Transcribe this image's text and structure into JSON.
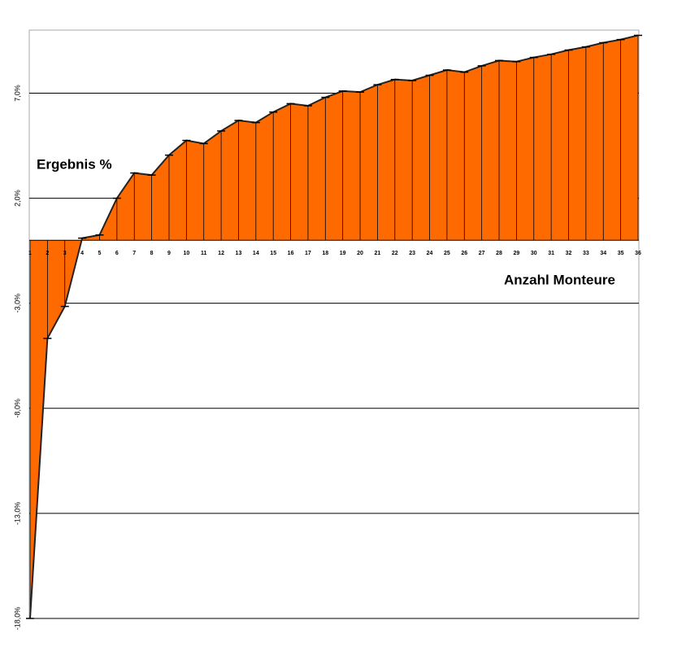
{
  "chart_data": {
    "type": "area",
    "y_label": "Ergebnis %",
    "x_label": "Anzahl Monteure",
    "categories": [
      "1",
      "2",
      "3",
      "4",
      "5",
      "6",
      "7",
      "8",
      "9",
      "10",
      "11",
      "12",
      "13",
      "14",
      "15",
      "16",
      "17",
      "18",
      "19",
      "20",
      "21",
      "22",
      "23",
      "24",
      "25",
      "26",
      "27",
      "28",
      "29",
      "30",
      "31",
      "32",
      "33",
      "34",
      "35",
      "36"
    ],
    "series": [
      {
        "color": "#ff6a00",
        "values": [
          -18.0,
          -4.67,
          -3.15,
          0.1,
          0.25,
          2.0,
          3.2,
          3.1,
          4.05,
          4.75,
          4.6,
          5.2,
          5.7,
          5.6,
          6.1,
          6.5,
          6.4,
          6.8,
          7.1,
          7.05,
          7.4,
          7.65,
          7.6,
          7.85,
          8.1,
          8.0,
          8.3,
          8.55,
          8.5,
          8.7,
          8.85,
          9.05,
          9.2,
          9.4,
          9.55,
          9.75
        ]
      }
    ],
    "ylim": [
      -18,
      10
    ],
    "yticks": [
      {
        "value": -18,
        "label": "-18,0%"
      },
      {
        "value": -13,
        "label": "-13,0%"
      },
      {
        "value": -8,
        "label": "-8,0%"
      },
      {
        "value": -3,
        "label": "-3,0%"
      },
      {
        "value": 2,
        "label": "2,0%"
      },
      {
        "value": 7,
        "label": "7,0%"
      }
    ],
    "grid": true
  }
}
